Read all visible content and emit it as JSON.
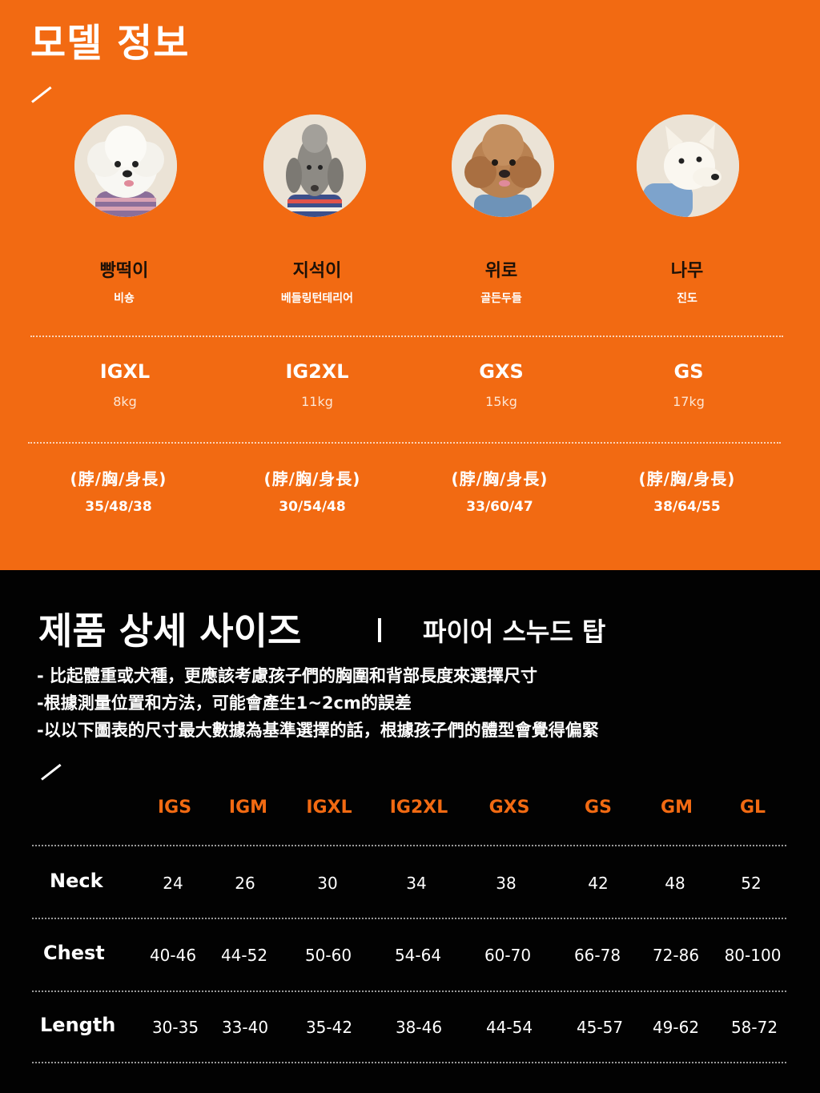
{
  "model_section": {
    "title": "모델 정보",
    "models": [
      {
        "name": "빵떡이",
        "breed": "비숑",
        "size": "IGXL",
        "weight": "8kg",
        "measure_label": "(脖/胸/身長)",
        "measurements": "35/48/38",
        "icon": "bichon-photo"
      },
      {
        "name": "지석이",
        "breed": "베들링턴테리어",
        "size": "IG2XL",
        "weight": "11kg",
        "measure_label": "(脖/胸/身長)",
        "measurements": "30/54/48",
        "icon": "bedlington-photo"
      },
      {
        "name": "위로",
        "breed": "골든두들",
        "size": "GXS",
        "weight": "15kg",
        "measure_label": "(脖/胸/身長)",
        "measurements": "33/60/47",
        "icon": "goldendoodle-photo"
      },
      {
        "name": "나무",
        "breed": "진도",
        "size": "GS",
        "weight": "17kg",
        "measure_label": "(脖/胸/身長)",
        "measurements": "38/64/55",
        "icon": "jindo-photo"
      }
    ]
  },
  "size_section": {
    "title": "제품 상세 사이즈",
    "product": "파이어 스누드 탑",
    "notes": [
      "- 比起體重或犬種，更應該考慮孩子們的胸圍和背部長度來選擇尺寸",
      "-根據測量位置和方法，可能會產生1~2cm的誤差",
      "-以以下圖表的尺寸最大數據為基準選擇的話，根據孩子們的體型會覺得偏緊"
    ],
    "table": {
      "columns": [
        "IGS",
        "IGM",
        "IGXL",
        "IG2XL",
        "GXS",
        "GS",
        "GM",
        "GL"
      ],
      "rows": [
        {
          "label": "Neck",
          "values": [
            "24",
            "26",
            "30",
            "34",
            "38",
            "42",
            "48",
            "52"
          ]
        },
        {
          "label": "Chest",
          "values": [
            "40-46",
            "44-52",
            "50-60",
            "54-64",
            "60-70",
            "66-78",
            "72-86",
            "80-100"
          ]
        },
        {
          "label": "Length",
          "values": [
            "30-35",
            "33-40",
            "35-42",
            "38-46",
            "44-54",
            "45-57",
            "49-62",
            "58-72"
          ]
        }
      ]
    }
  },
  "colors": {
    "accent": "#f26a12",
    "dark": "#020202",
    "text": "#ffffff"
  }
}
